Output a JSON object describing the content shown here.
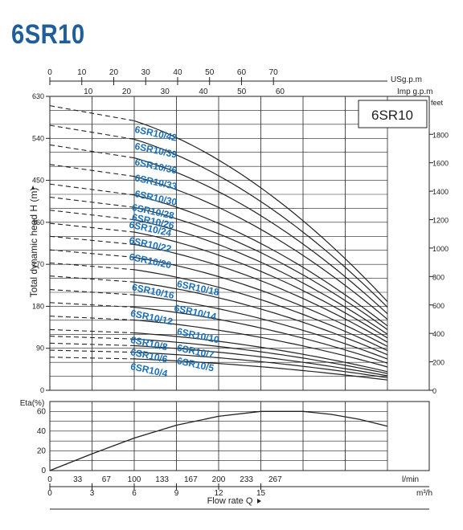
{
  "title": "6SR10",
  "chart_data": [
    {
      "type": "line",
      "name_box": "6SR10",
      "ylabel": "Total dynamic head H (m)",
      "ylim": [
        0,
        630
      ],
      "xlim": [
        0,
        24
      ],
      "x_unit_note": "x values in m³/h",
      "left_ticks": [
        "0",
        "90",
        "180",
        "270",
        "360",
        "450",
        "540",
        "630"
      ],
      "right_axis": {
        "unit": "feet",
        "ticks": [
          "0",
          "200",
          "400",
          "600",
          "800",
          "1000",
          "1200",
          "1400",
          "1600",
          "1800"
        ],
        "values": [
          0,
          200,
          400,
          600,
          800,
          1000,
          1200,
          1400,
          1600,
          1800
        ]
      },
      "top_axis_usgpm": {
        "unit": "USg.p.m",
        "ticks": [
          "0",
          "10",
          "20",
          "30",
          "40",
          "50",
          "60",
          "70"
        ],
        "values": [
          0,
          10,
          20,
          30,
          40,
          50,
          60,
          70
        ]
      },
      "top_axis_impgpm": {
        "unit": "Imp g.p.m",
        "ticks": [
          "10",
          "20",
          "30",
          "40",
          "50",
          "60"
        ],
        "values": [
          10,
          20,
          30,
          40,
          50,
          60
        ]
      },
      "grid": true,
      "series": [
        {
          "name": "6SR10/42",
          "shutoff": 610,
          "head_at_24": 190
        },
        {
          "name": "6SR10/39",
          "shutoff": 568,
          "head_at_24": 178
        },
        {
          "name": "6SR10/36",
          "shutoff": 526,
          "head_at_24": 164
        },
        {
          "name": "6SR10/33",
          "shutoff": 484,
          "head_at_24": 152
        },
        {
          "name": "6SR10/30",
          "shutoff": 442,
          "head_at_24": 138
        },
        {
          "name": "6SR10/28",
          "shutoff": 414,
          "head_at_24": 130
        },
        {
          "name": "6SR10/26",
          "shutoff": 386,
          "head_at_24": 120
        },
        {
          "name": "6SR10/24",
          "shutoff": 358,
          "head_at_24": 112
        },
        {
          "name": "6SR10/22",
          "shutoff": 330,
          "head_at_24": 103
        },
        {
          "name": "6SR10/20",
          "shutoff": 301,
          "head_at_24": 94
        },
        {
          "name": "6SR10/18",
          "shutoff": 273,
          "head_at_24": 85
        },
        {
          "name": "6SR10/16",
          "shutoff": 245,
          "head_at_24": 76
        },
        {
          "name": "6SR10/14",
          "shutoff": 216,
          "head_at_24": 67
        },
        {
          "name": "6SR10/12",
          "shutoff": 188,
          "head_at_24": 58
        },
        {
          "name": "6SR10/10",
          "shutoff": 159,
          "head_at_24": 50
        },
        {
          "name": "6SR10/8",
          "shutoff": 130,
          "head_at_24": 40
        },
        {
          "name": "6SR10/7",
          "shutoff": 116,
          "head_at_24": 36
        },
        {
          "name": "6SR10/6",
          "shutoff": 101,
          "head_at_24": 31
        },
        {
          "name": "6SR10/5",
          "shutoff": 86,
          "head_at_24": 27
        },
        {
          "name": "6SR10/4",
          "shutoff": 71,
          "head_at_24": 22
        }
      ],
      "series_labels": [
        {
          "name": "6SR10/42",
          "x": 6,
          "y": 553
        },
        {
          "name": "6SR10/39",
          "x": 6,
          "y": 517
        },
        {
          "name": "6SR10/36",
          "x": 6,
          "y": 483
        },
        {
          "name": "6SR10/33",
          "x": 6,
          "y": 449
        },
        {
          "name": "6SR10/30",
          "x": 6,
          "y": 415
        },
        {
          "name": "6SR10/28",
          "x": 5.8,
          "y": 386
        },
        {
          "name": "6SR10/26",
          "x": 5.8,
          "y": 365
        },
        {
          "name": "6SR10/24",
          "x": 5.6,
          "y": 349
        },
        {
          "name": "6SR10/22",
          "x": 5.6,
          "y": 315
        },
        {
          "name": "6SR10/20",
          "x": 5.6,
          "y": 280
        },
        {
          "name": "6SR10/18",
          "x": 9,
          "y": 222
        },
        {
          "name": "6SR10/16",
          "x": 5.8,
          "y": 215
        },
        {
          "name": "6SR10/14",
          "x": 8.8,
          "y": 170
        },
        {
          "name": "6SR10/12",
          "x": 5.7,
          "y": 159
        },
        {
          "name": "6SR10/10",
          "x": 9,
          "y": 120
        },
        {
          "name": "6SR10/8",
          "x": 5.7,
          "y": 102
        },
        {
          "name": "6SR10/7",
          "x": 9,
          "y": 85
        },
        {
          "name": "6SR10/6",
          "x": 5.7,
          "y": 76
        },
        {
          "name": "6SR10/5",
          "x": 9,
          "y": 57
        },
        {
          "name": "6SR10/4",
          "x": 5.7,
          "y": 45
        }
      ]
    },
    {
      "type": "line",
      "ylabel": "Eta(%)",
      "ylim": [
        0,
        70
      ],
      "yticks": [
        "0",
        "20",
        "40",
        "60"
      ],
      "grid": true,
      "series": [
        {
          "name": "Eta",
          "x": [
            0,
            3,
            6,
            9,
            12,
            15,
            18,
            20,
            22,
            24
          ],
          "values": [
            0,
            17,
            33,
            46,
            55,
            60,
            60,
            57,
            52,
            45
          ]
        }
      ]
    }
  ],
  "x_axes": {
    "lmin": {
      "unit": "l/min",
      "ticks": [
        "0",
        "33",
        "67",
        "100",
        "133",
        "167",
        "200",
        "233",
        "267"
      ],
      "values": [
        0,
        33,
        67,
        100,
        133,
        167,
        200,
        233,
        267
      ]
    },
    "m3h": {
      "unit": "m³/h",
      "ticks": [
        "0",
        "3",
        "6",
        "9",
        "12",
        "15"
      ],
      "values": [
        0,
        3,
        6,
        9,
        12,
        15
      ]
    },
    "label": "Flow rate Q"
  }
}
